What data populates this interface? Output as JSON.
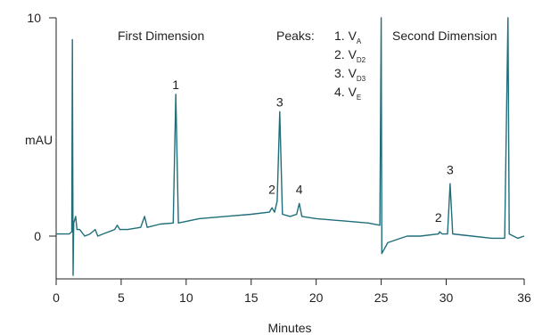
{
  "chart_data": {
    "type": "line",
    "xlabel": "Minutes",
    "ylabel": "mAU",
    "x_ticks": [
      0,
      5,
      10,
      15,
      20,
      25,
      30,
      36
    ],
    "x_tick_labels": [
      "0",
      "5",
      "10",
      "15",
      "20",
      "25",
      "30",
      "36"
    ],
    "y_ticks": [
      0,
      10
    ],
    "y_tick_labels": [
      "0",
      "10"
    ],
    "xlim": [
      0,
      36
    ],
    "ylim": [
      -2,
      10
    ],
    "line_color": "#1f6e7a",
    "section_divider_x": 25,
    "annotations": {
      "first_dimension": "First Dimension",
      "second_dimension": "Second Dimension",
      "peaks_title": "Peaks:"
    },
    "peak_legend": [
      {
        "num": "1.",
        "base": "V",
        "sub": "A"
      },
      {
        "num": "2.",
        "base": "V",
        "sub": "D2"
      },
      {
        "num": "3.",
        "base": "V",
        "sub": "D3"
      },
      {
        "num": "4.",
        "base": "V",
        "sub": "E"
      }
    ],
    "peak_labels": [
      {
        "label": "1",
        "x": 9.2,
        "y": 6.5
      },
      {
        "label": "2",
        "x": 16.6,
        "y": 1.7
      },
      {
        "label": "3",
        "x": 17.2,
        "y": 5.7
      },
      {
        "label": "4",
        "x": 18.7,
        "y": 1.7
      },
      {
        "label": "2",
        "x": 29.4,
        "y": 0.4
      },
      {
        "label": "3",
        "x": 30.3,
        "y": 2.6
      }
    ],
    "series": [
      {
        "points": [
          [
            0,
            0.1
          ],
          [
            1.0,
            0.1
          ],
          [
            1.2,
            0.2
          ],
          [
            1.25,
            9.0
          ],
          [
            1.3,
            -1.8
          ],
          [
            1.35,
            0.6
          ],
          [
            1.5,
            0.9
          ],
          [
            1.6,
            0.3
          ],
          [
            1.8,
            0.3
          ],
          [
            2.2,
            0.0
          ],
          [
            2.6,
            0.1
          ],
          [
            3.0,
            0.3
          ],
          [
            3.2,
            0.0
          ],
          [
            3.6,
            0.1
          ],
          [
            4.5,
            0.3
          ],
          [
            4.7,
            0.5
          ],
          [
            4.9,
            0.3
          ],
          [
            5.5,
            0.3
          ],
          [
            6.5,
            0.4
          ],
          [
            6.8,
            0.9
          ],
          [
            7.0,
            0.4
          ],
          [
            8.0,
            0.55
          ],
          [
            9.0,
            0.6
          ],
          [
            9.2,
            6.5
          ],
          [
            9.4,
            0.6
          ],
          [
            11,
            0.8
          ],
          [
            13,
            0.9
          ],
          [
            15,
            1.0
          ],
          [
            16.4,
            1.1
          ],
          [
            16.6,
            1.3
          ],
          [
            16.8,
            1.1
          ],
          [
            17.0,
            1.6
          ],
          [
            17.2,
            5.7
          ],
          [
            17.4,
            1.0
          ],
          [
            18.0,
            0.9
          ],
          [
            18.5,
            1.0
          ],
          [
            18.7,
            1.5
          ],
          [
            18.9,
            0.9
          ],
          [
            20,
            0.8
          ],
          [
            22,
            0.7
          ],
          [
            24,
            0.6
          ],
          [
            24.9,
            0.5
          ],
          [
            25.0,
            10.0
          ],
          [
            25.05,
            -0.8
          ],
          [
            25.5,
            -0.3
          ],
          [
            26.5,
            -0.1
          ],
          [
            27.0,
            0.0
          ],
          [
            28,
            0.0
          ],
          [
            29.4,
            0.1
          ],
          [
            29.5,
            0.2
          ],
          [
            29.7,
            0.1
          ],
          [
            30.1,
            0.1
          ],
          [
            30.3,
            2.4
          ],
          [
            30.5,
            0.1
          ],
          [
            32,
            0.0
          ],
          [
            33.5,
            -0.1
          ],
          [
            34.5,
            -0.1
          ],
          [
            34.75,
            10.0
          ],
          [
            34.85,
            0.1
          ],
          [
            35.5,
            -0.1
          ],
          [
            36,
            0.0
          ]
        ]
      }
    ]
  }
}
